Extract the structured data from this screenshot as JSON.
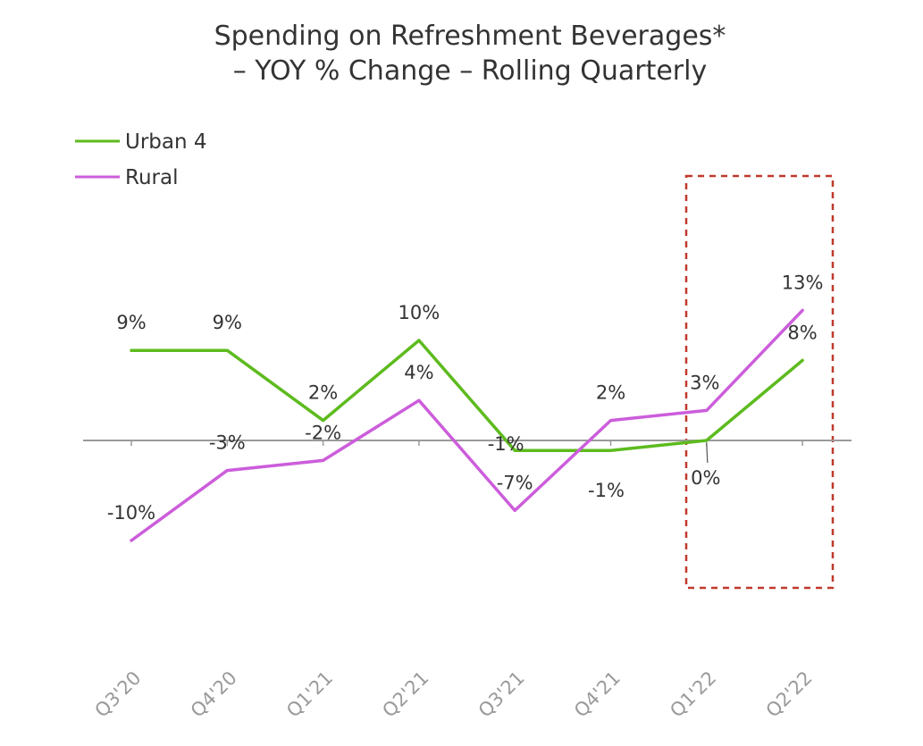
{
  "chart_data": {
    "type": "line",
    "title": [
      "Spending on Refreshment Beverages*",
      "– YOY % Change – Rolling Quarterly"
    ],
    "categories": [
      "Q3'20",
      "Q4'20",
      "Q1'21",
      "Q2'21",
      "Q3'21",
      "Q4'21",
      "Q1'22",
      "Q2'22"
    ],
    "series": [
      {
        "name": "Urban 4",
        "color": "#5dbb1e",
        "values": [
          9,
          9,
          2,
          10,
          -1,
          -1,
          0,
          8
        ],
        "labels": [
          "9%",
          "9%",
          "2%",
          "10%",
          "-1%",
          "-1%",
          "0%",
          "8%"
        ]
      },
      {
        "name": "Rural",
        "color": "#cc5ddb",
        "values": [
          -10,
          -3,
          -2,
          4,
          -7,
          2,
          3,
          13
        ],
        "labels": [
          "-10%",
          "-3%",
          "-2%",
          "4%",
          "-7%",
          "2%",
          "3%",
          "13%"
        ]
      }
    ],
    "ylim": [
      -14,
      14
    ],
    "legend": "top-left",
    "highlight": {
      "categories": [
        "Q1'22",
        "Q2'22"
      ],
      "style": "dashed box",
      "color": "#c0392b"
    }
  }
}
